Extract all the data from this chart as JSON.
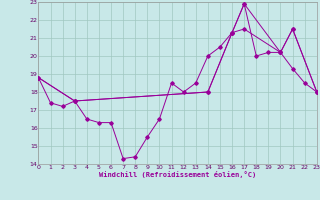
{
  "xlabel": "Windchill (Refroidissement éolien,°C)",
  "bg_color": "#c8e8e8",
  "grid_color": "#a0c8c0",
  "line_color": "#990099",
  "ylim": [
    14,
    23
  ],
  "xlim": [
    0,
    23
  ],
  "yticks": [
    14,
    15,
    16,
    17,
    18,
    19,
    20,
    21,
    22,
    23
  ],
  "xticks": [
    0,
    1,
    2,
    3,
    4,
    5,
    6,
    7,
    8,
    9,
    10,
    11,
    12,
    13,
    14,
    15,
    16,
    17,
    18,
    19,
    20,
    21,
    22,
    23
  ],
  "line1_x": [
    0,
    1,
    2,
    3,
    4,
    5,
    6,
    7,
    8,
    9,
    10,
    11,
    12,
    13,
    14,
    15,
    16,
    17,
    18,
    19,
    20,
    21,
    22,
    23
  ],
  "line1_y": [
    18.8,
    17.4,
    17.2,
    17.5,
    16.5,
    16.3,
    16.3,
    14.3,
    14.4,
    15.5,
    16.5,
    18.5,
    18.0,
    18.5,
    20.0,
    20.5,
    21.3,
    22.9,
    20.0,
    20.2,
    20.2,
    19.3,
    18.5,
    18.0
  ],
  "line2_x": [
    0,
    3,
    14,
    16,
    17,
    20,
    21,
    23
  ],
  "line2_y": [
    18.8,
    17.5,
    18.0,
    21.3,
    22.9,
    20.2,
    21.5,
    18.0
  ],
  "line3_x": [
    0,
    3,
    14,
    16,
    17,
    20,
    21,
    23
  ],
  "line3_y": [
    18.8,
    17.5,
    18.0,
    21.3,
    21.5,
    20.2,
    21.5,
    18.0
  ]
}
